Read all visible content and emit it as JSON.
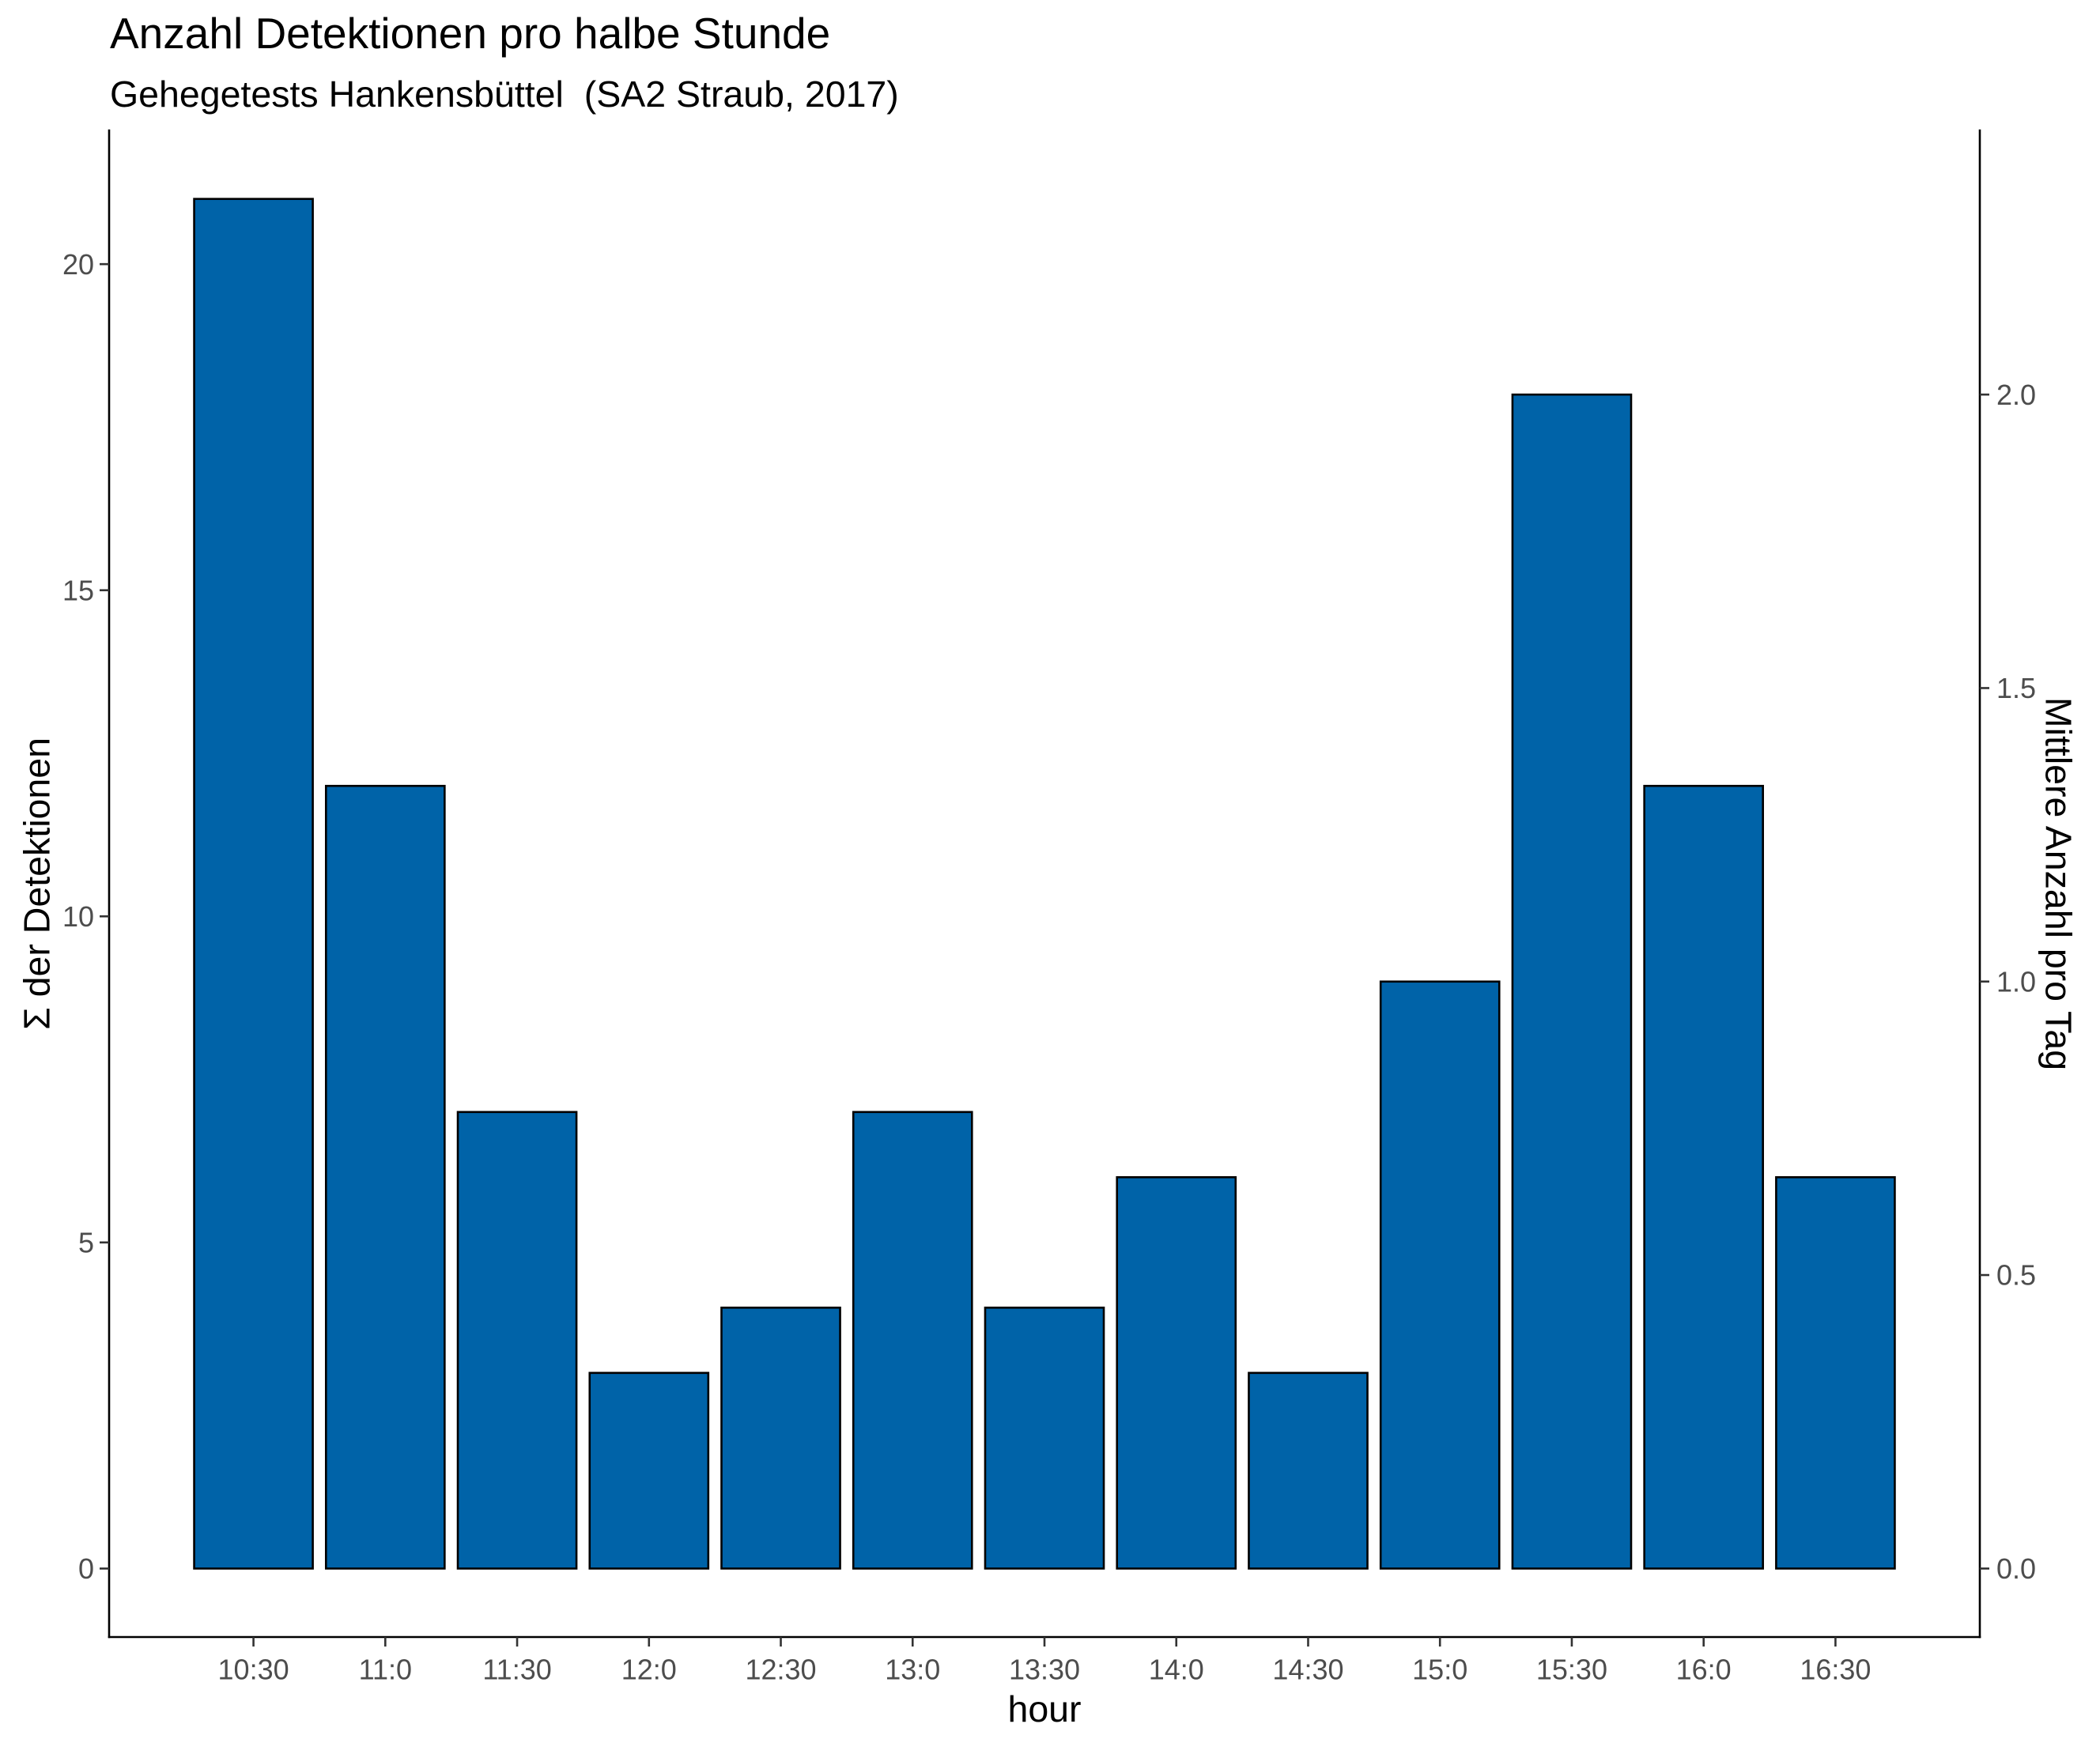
{
  "chart_data": {
    "type": "bar",
    "title": "Anzahl Detektionen pro halbe Stunde",
    "subtitle": "Gehegetests Hankensbüttel  (SA2 Straub, 2017)",
    "xlabel": "hour",
    "ylabel": "Σ der Detektionen",
    "y2label": "Mittlere Anzahl pro Tag",
    "categories": [
      "10:30",
      "11:0",
      "11:30",
      "12:0",
      "12:30",
      "13:0",
      "13:30",
      "14:0",
      "14:30",
      "15:0",
      "15:30",
      "16:0",
      "16:30"
    ],
    "x": [
      10.5,
      11.0,
      11.5,
      12.0,
      12.5,
      13.0,
      13.5,
      14.0,
      14.5,
      15.0,
      15.5,
      16.0,
      16.5
    ],
    "values": [
      21,
      12,
      7,
      3,
      4,
      7,
      4,
      6,
      3,
      9,
      18,
      12,
      6
    ],
    "xlim": [
      9.9525,
      17.0475
    ],
    "ylim": [
      -1.05,
      22.05
    ],
    "yticks": [
      0,
      5,
      10,
      15,
      20
    ],
    "y2lim": [
      -0.1167,
      2.45
    ],
    "y2ticks": [
      "0.0",
      "0.5",
      "1.0",
      "1.5",
      "2.0"
    ],
    "grid": false
  },
  "colors": {
    "bar_fill": "#0063A8",
    "bar_stroke": "#000000",
    "axis": "#000000",
    "tick_text": "#4D4D4D"
  }
}
